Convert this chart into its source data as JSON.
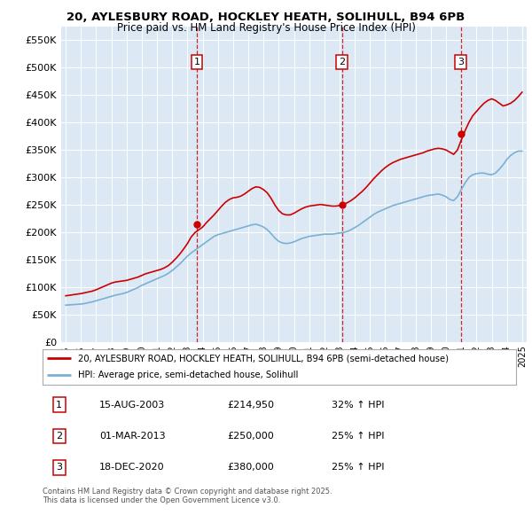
{
  "title_line1": "20, AYLESBURY ROAD, HOCKLEY HEATH, SOLIHULL, B94 6PB",
  "title_line2": "Price paid vs. HM Land Registry's House Price Index (HPI)",
  "background_color": "#dce9f5",
  "sale_year_floats": [
    2003.625,
    2013.167,
    2020.958
  ],
  "sale_prices": [
    214950,
    250000,
    380000
  ],
  "sale_labels": [
    "1",
    "2",
    "3"
  ],
  "legend_line1": "20, AYLESBURY ROAD, HOCKLEY HEATH, SOLIHULL, B94 6PB (semi-detached house)",
  "legend_line2": "HPI: Average price, semi-detached house, Solihull",
  "table_data": [
    [
      "1",
      "15-AUG-2003",
      "£214,950",
      "32% ↑ HPI"
    ],
    [
      "2",
      "01-MAR-2013",
      "£250,000",
      "25% ↑ HPI"
    ],
    [
      "3",
      "18-DEC-2020",
      "£380,000",
      "25% ↑ HPI"
    ]
  ],
  "footnote": "Contains HM Land Registry data © Crown copyright and database right 2025.\nThis data is licensed under the Open Government Licence v3.0.",
  "ylim": [
    0,
    575000
  ],
  "yticks": [
    0,
    50000,
    100000,
    150000,
    200000,
    250000,
    300000,
    350000,
    400000,
    450000,
    500000,
    550000
  ],
  "ytick_labels": [
    "£0",
    "£50K",
    "£100K",
    "£150K",
    "£200K",
    "£250K",
    "£300K",
    "£350K",
    "£400K",
    "£450K",
    "£500K",
    "£550K"
  ],
  "red_color": "#cc0000",
  "blue_color": "#7ab0d4",
  "dashed_color": "#cc0000",
  "years_hpi": [
    1995.0,
    1995.25,
    1995.5,
    1995.75,
    1996.0,
    1996.25,
    1996.5,
    1996.75,
    1997.0,
    1997.25,
    1997.5,
    1997.75,
    1998.0,
    1998.25,
    1998.5,
    1998.75,
    1999.0,
    1999.25,
    1999.5,
    1999.75,
    2000.0,
    2000.25,
    2000.5,
    2000.75,
    2001.0,
    2001.25,
    2001.5,
    2001.75,
    2002.0,
    2002.25,
    2002.5,
    2002.75,
    2003.0,
    2003.25,
    2003.5,
    2003.75,
    2004.0,
    2004.25,
    2004.5,
    2004.75,
    2005.0,
    2005.25,
    2005.5,
    2005.75,
    2006.0,
    2006.25,
    2006.5,
    2006.75,
    2007.0,
    2007.25,
    2007.5,
    2007.75,
    2008.0,
    2008.25,
    2008.5,
    2008.75,
    2009.0,
    2009.25,
    2009.5,
    2009.75,
    2010.0,
    2010.25,
    2010.5,
    2010.75,
    2011.0,
    2011.25,
    2011.5,
    2011.75,
    2012.0,
    2012.25,
    2012.5,
    2012.75,
    2013.0,
    2013.25,
    2013.5,
    2013.75,
    2014.0,
    2014.25,
    2014.5,
    2014.75,
    2015.0,
    2015.25,
    2015.5,
    2015.75,
    2016.0,
    2016.25,
    2016.5,
    2016.75,
    2017.0,
    2017.25,
    2017.5,
    2017.75,
    2018.0,
    2018.25,
    2018.5,
    2018.75,
    2019.0,
    2019.25,
    2019.5,
    2019.75,
    2020.0,
    2020.25,
    2020.5,
    2020.75,
    2021.0,
    2021.25,
    2021.5,
    2021.75,
    2022.0,
    2022.25,
    2022.5,
    2022.75,
    2023.0,
    2023.25,
    2023.5,
    2023.75,
    2024.0,
    2024.25,
    2024.5,
    2024.75,
    2025.0
  ],
  "hpi_values": [
    68000,
    68500,
    69000,
    69500,
    70000,
    71000,
    72500,
    74000,
    76000,
    78000,
    80000,
    82000,
    84000,
    86000,
    87500,
    89000,
    91000,
    94000,
    97000,
    100000,
    104000,
    107000,
    110000,
    113000,
    116000,
    119000,
    122000,
    126000,
    131000,
    137000,
    143000,
    150000,
    157000,
    163000,
    168000,
    173000,
    178000,
    183000,
    188000,
    193000,
    196000,
    198000,
    200000,
    202000,
    204000,
    206000,
    208000,
    210000,
    212000,
    214000,
    215000,
    213000,
    210000,
    205000,
    198000,
    190000,
    184000,
    181000,
    180000,
    181000,
    183000,
    186000,
    189000,
    191000,
    193000,
    194000,
    195000,
    196000,
    197000,
    197000,
    197000,
    198000,
    199000,
    200000,
    202000,
    205000,
    209000,
    213000,
    218000,
    223000,
    228000,
    233000,
    237000,
    240000,
    243000,
    246000,
    249000,
    251000,
    253000,
    255000,
    257000,
    259000,
    261000,
    263000,
    265000,
    267000,
    268000,
    269000,
    270000,
    268000,
    265000,
    260000,
    258000,
    265000,
    278000,
    290000,
    300000,
    305000,
    307000,
    308000,
    308000,
    306000,
    305000,
    308000,
    315000,
    323000,
    333000,
    340000,
    345000,
    348000,
    348000
  ],
  "prop_values": [
    85000,
    86000,
    87000,
    88000,
    89000,
    90500,
    92000,
    93500,
    96000,
    99000,
    102000,
    105000,
    108000,
    110000,
    111000,
    112000,
    113000,
    115000,
    117000,
    119000,
    122000,
    125000,
    127000,
    129000,
    131000,
    133000,
    136000,
    140000,
    146000,
    153000,
    161000,
    170000,
    180000,
    192000,
    200000,
    205000,
    210000,
    218000,
    225000,
    232000,
    240000,
    248000,
    255000,
    260000,
    263000,
    264000,
    266000,
    270000,
    275000,
    280000,
    283000,
    282000,
    278000,
    272000,
    262000,
    250000,
    240000,
    234000,
    232000,
    232000,
    235000,
    239000,
    243000,
    246000,
    248000,
    249000,
    250000,
    251000,
    250000,
    249000,
    248000,
    248000,
    249000,
    251000,
    254000,
    258000,
    263000,
    269000,
    275000,
    282000,
    290000,
    298000,
    305000,
    312000,
    318000,
    323000,
    327000,
    330000,
    333000,
    335000,
    337000,
    339000,
    341000,
    343000,
    345000,
    348000,
    350000,
    352000,
    353000,
    352000,
    350000,
    346000,
    342000,
    350000,
    368000,
    385000,
    400000,
    412000,
    420000,
    428000,
    435000,
    440000,
    443000,
    440000,
    435000,
    430000,
    432000,
    435000,
    440000,
    447000,
    455000
  ]
}
